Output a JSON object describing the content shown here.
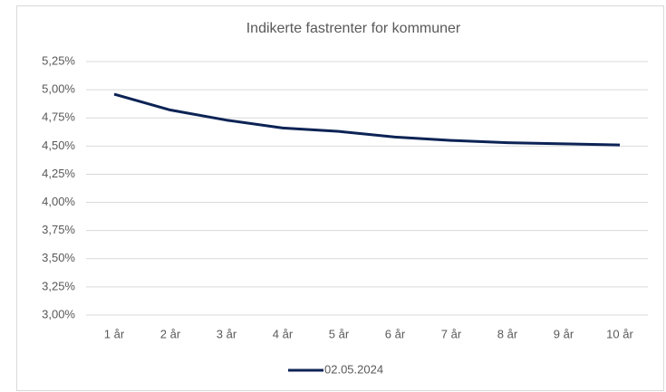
{
  "chart_data": {
    "type": "line",
    "title": "Indikerte fastrenter for kommuner",
    "categories": [
      "1 år",
      "2 år",
      "3 år",
      "4 år",
      "5 år",
      "6 år",
      "7 år",
      "8 år",
      "9 år",
      "10 år"
    ],
    "series": [
      {
        "name": "02.05.2024",
        "color": "#0c2355",
        "values": [
          4.96,
          4.82,
          4.73,
          4.66,
          4.63,
          4.58,
          4.55,
          4.53,
          4.52,
          4.51
        ]
      }
    ],
    "ylim": [
      3.0,
      5.25
    ],
    "yticks": [
      {
        "value": 3.0,
        "label": "3,00%"
      },
      {
        "value": 3.25,
        "label": "3,25%"
      },
      {
        "value": 3.5,
        "label": "3,50%"
      },
      {
        "value": 3.75,
        "label": "3,75%"
      },
      {
        "value": 4.0,
        "label": "4,00%"
      },
      {
        "value": 4.25,
        "label": "4,25%"
      },
      {
        "value": 4.5,
        "label": "4,50%"
      },
      {
        "value": 4.75,
        "label": "4,75%"
      },
      {
        "value": 5.0,
        "label": "5,00%"
      },
      {
        "value": 5.25,
        "label": "5,25%"
      }
    ],
    "grid": true,
    "legend": "bottom"
  }
}
